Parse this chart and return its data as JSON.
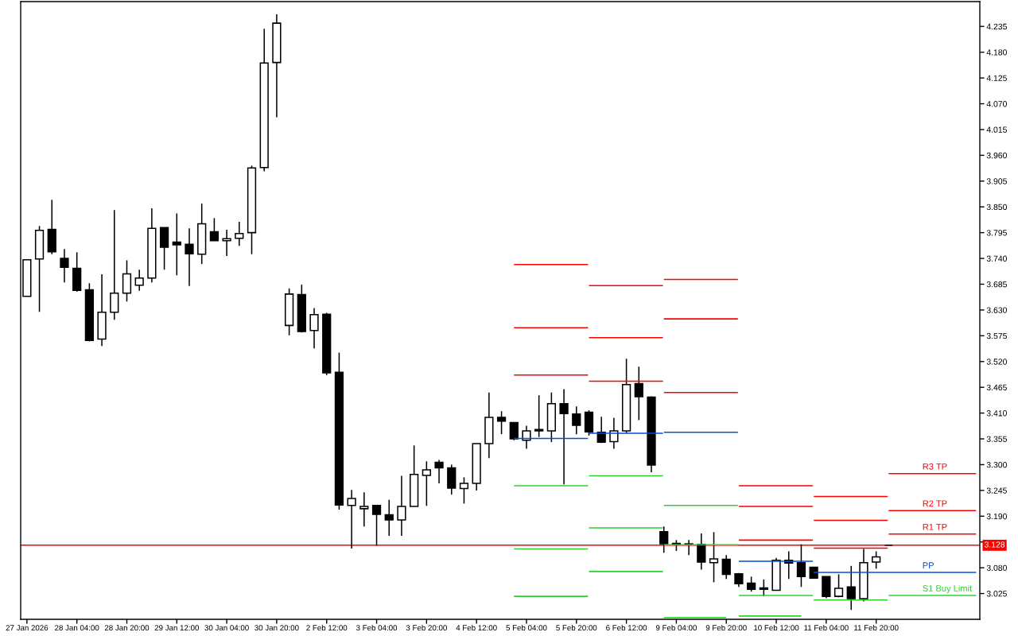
{
  "chart_data": {
    "type": "candlestick",
    "categories": [
      "27 Jan 2026",
      null,
      null,
      null,
      "28 Jan 04:00",
      null,
      null,
      null,
      "28 Jan 20:00",
      null,
      null,
      null,
      "29 Jan 12:00",
      null,
      null,
      null,
      "30 Jan 04:00",
      null,
      null,
      null,
      "30 Jan 20:00",
      null,
      null,
      null,
      "2 Feb 12:00",
      null,
      null,
      null,
      "3 Feb 04:00",
      null,
      null,
      null,
      "3 Feb 20:00",
      null,
      null,
      null,
      "4 Feb 12:00",
      null,
      null,
      null,
      "5 Feb 04:00",
      null,
      null,
      null,
      "5 Feb 20:00",
      null,
      null,
      null,
      "6 Feb 12:00",
      null,
      null,
      null,
      "9 Feb 04:00",
      null,
      null,
      null,
      "9 Feb 20:00",
      null,
      null,
      null,
      "10 Feb 12:00",
      null,
      null,
      null,
      "11 Feb 04:00",
      null,
      null,
      null,
      "11 Feb 20:00",
      null,
      null,
      null,
      null,
      null,
      null,
      null,
      null
    ],
    "ohlc": [
      [
        3.659,
        3.737,
        3.659,
        3.737
      ],
      [
        3.739,
        3.809,
        3.626,
        3.8
      ],
      [
        3.802,
        3.865,
        3.749,
        3.754
      ],
      [
        3.74,
        3.76,
        3.689,
        3.721
      ],
      [
        3.719,
        3.753,
        3.669,
        3.672
      ],
      [
        3.673,
        3.687,
        3.563,
        3.565
      ],
      [
        3.568,
        3.706,
        3.553,
        3.625
      ],
      [
        3.625,
        3.843,
        3.609,
        3.666
      ],
      [
        3.666,
        3.736,
        3.648,
        3.707
      ],
      [
        3.683,
        3.716,
        3.671,
        3.698
      ],
      [
        3.698,
        3.847,
        3.689,
        3.804
      ],
      [
        3.806,
        3.806,
        3.716,
        3.764
      ],
      [
        3.775,
        3.836,
        3.704,
        3.769
      ],
      [
        3.77,
        3.804,
        3.681,
        3.75
      ],
      [
        3.749,
        3.857,
        3.728,
        3.814
      ],
      [
        3.797,
        3.826,
        3.778,
        3.778
      ],
      [
        3.778,
        3.801,
        3.745,
        3.782
      ],
      [
        3.783,
        3.818,
        3.767,
        3.793
      ],
      [
        3.795,
        3.938,
        3.749,
        3.933
      ],
      [
        3.934,
        4.23,
        3.926,
        4.157
      ],
      [
        4.158,
        4.261,
        4.041,
        4.242
      ],
      [
        3.597,
        3.676,
        3.576,
        3.664
      ],
      [
        3.663,
        3.684,
        3.582,
        3.584
      ],
      [
        3.586,
        3.634,
        3.548,
        3.62
      ],
      [
        3.621,
        3.624,
        3.491,
        3.496
      ],
      [
        3.497,
        3.539,
        3.204,
        3.214
      ],
      [
        3.213,
        3.246,
        3.121,
        3.228
      ],
      [
        3.206,
        3.241,
        3.168,
        3.211
      ],
      [
        3.213,
        3.214,
        3.127,
        3.194
      ],
      [
        3.193,
        3.225,
        3.148,
        3.182
      ],
      [
        3.182,
        3.276,
        3.148,
        3.211
      ],
      [
        3.211,
        3.341,
        3.211,
        3.279
      ],
      [
        3.277,
        3.307,
        3.212,
        3.289
      ],
      [
        3.305,
        3.31,
        3.26,
        3.293
      ],
      [
        3.293,
        3.3,
        3.236,
        3.25
      ],
      [
        3.249,
        3.273,
        3.217,
        3.26
      ],
      [
        3.26,
        3.345,
        3.245,
        3.345
      ],
      [
        3.345,
        3.454,
        3.314,
        3.401
      ],
      [
        3.401,
        3.414,
        3.365,
        3.393
      ],
      [
        3.39,
        3.39,
        3.352,
        3.355
      ],
      [
        3.352,
        3.383,
        3.334,
        3.372
      ],
      [
        3.375,
        3.448,
        3.359,
        3.372
      ],
      [
        3.372,
        3.454,
        3.348,
        3.43
      ],
      [
        3.43,
        3.461,
        3.258,
        3.409
      ],
      [
        3.408,
        3.424,
        3.365,
        3.384
      ],
      [
        3.412,
        3.416,
        3.362,
        3.37
      ],
      [
        3.369,
        3.402,
        3.346,
        3.348
      ],
      [
        3.349,
        3.4,
        3.334,
        3.372
      ],
      [
        3.372,
        3.526,
        3.367,
        3.471
      ],
      [
        3.473,
        3.509,
        3.395,
        3.445
      ],
      [
        3.444,
        3.446,
        3.284,
        3.299
      ],
      [
        3.157,
        3.168,
        3.112,
        3.131
      ],
      [
        3.132,
        3.139,
        3.116,
        3.129
      ],
      [
        3.131,
        3.139,
        3.107,
        3.129
      ],
      [
        3.13,
        3.153,
        3.076,
        3.092
      ],
      [
        3.091,
        3.156,
        3.049,
        3.099
      ],
      [
        3.098,
        3.107,
        3.056,
        3.066
      ],
      [
        3.067,
        3.069,
        3.039,
        3.046
      ],
      [
        3.047,
        3.061,
        3.029,
        3.034
      ],
      [
        3.037,
        3.055,
        3.019,
        3.034
      ],
      [
        3.032,
        3.101,
        3.032,
        3.096
      ],
      [
        3.096,
        3.115,
        3.056,
        3.09
      ],
      [
        3.091,
        3.13,
        3.039,
        3.061
      ],
      [
        3.081,
        3.081,
        3.058,
        3.058
      ],
      [
        3.061,
        3.061,
        3.015,
        3.019
      ],
      [
        3.019,
        3.066,
        3.017,
        3.036
      ],
      [
        3.039,
        3.084,
        2.99,
        3.014
      ],
      [
        3.014,
        3.12,
        3.008,
        3.091
      ],
      [
        3.092,
        3.115,
        3.078,
        3.103
      ],
      [
        3.128,
        3.128,
        3.128,
        3.128
      ],
      null,
      null,
      null,
      null,
      null,
      null,
      null
    ],
    "series": [
      {
        "type": "step",
        "name": "R3 TP",
        "color": "#ff0000",
        "values": [
          null,
          null,
          null,
          null,
          null,
          null,
          null,
          null,
          null,
          null,
          null,
          null,
          null,
          null,
          null,
          null,
          null,
          null,
          null,
          null,
          null,
          null,
          null,
          null,
          null,
          null,
          null,
          null,
          null,
          null,
          null,
          null,
          null,
          null,
          null,
          null,
          null,
          null,
          null,
          3.727,
          3.727,
          3.727,
          3.727,
          3.727,
          3.727,
          3.682,
          3.682,
          3.682,
          3.682,
          3.682,
          3.682,
          3.695,
          3.695,
          3.695,
          3.695,
          3.695,
          3.695,
          3.255,
          3.255,
          3.255,
          3.255,
          3.255,
          3.255,
          3.232,
          3.232,
          3.232,
          3.232,
          3.232,
          3.232,
          3.281,
          3.281,
          3.281,
          3.281,
          3.281,
          3.281,
          3.281,
          3.281
        ]
      },
      {
        "type": "step",
        "name": "R2 TP",
        "color": "#ff0000",
        "values": [
          null,
          null,
          null,
          null,
          null,
          null,
          null,
          null,
          null,
          null,
          null,
          null,
          null,
          null,
          null,
          null,
          null,
          null,
          null,
          null,
          null,
          null,
          null,
          null,
          null,
          null,
          null,
          null,
          null,
          null,
          null,
          null,
          null,
          null,
          null,
          null,
          null,
          null,
          null,
          3.592,
          3.592,
          3.592,
          3.592,
          3.592,
          3.592,
          3.571,
          3.571,
          3.571,
          3.571,
          3.571,
          3.571,
          3.611,
          3.611,
          3.611,
          3.611,
          3.611,
          3.611,
          3.211,
          3.211,
          3.211,
          3.211,
          3.211,
          3.211,
          3.181,
          3.181,
          3.181,
          3.181,
          3.181,
          3.181,
          3.202,
          3.202,
          3.202,
          3.202,
          3.202,
          3.202,
          3.202,
          3.202
        ]
      },
      {
        "type": "step",
        "name": "R1 TP",
        "color": "#ff0000",
        "values": [
          null,
          null,
          null,
          null,
          null,
          null,
          null,
          null,
          null,
          null,
          null,
          null,
          null,
          null,
          null,
          null,
          null,
          null,
          null,
          null,
          null,
          null,
          null,
          null,
          null,
          null,
          null,
          null,
          null,
          null,
          null,
          null,
          null,
          null,
          null,
          null,
          null,
          null,
          null,
          3.491,
          3.491,
          3.491,
          3.491,
          3.491,
          3.491,
          3.478,
          3.478,
          3.478,
          3.478,
          3.478,
          3.478,
          3.454,
          3.454,
          3.454,
          3.454,
          3.454,
          3.454,
          3.139,
          3.139,
          3.139,
          3.139,
          3.139,
          3.139,
          3.122,
          3.122,
          3.122,
          3.122,
          3.122,
          3.122,
          3.152,
          3.152,
          3.152,
          3.152,
          3.152,
          3.152,
          3.152,
          3.152
        ]
      },
      {
        "type": "step",
        "name": "PP",
        "color": "#0050dc",
        "values": [
          null,
          null,
          null,
          null,
          null,
          null,
          null,
          null,
          null,
          null,
          null,
          null,
          null,
          null,
          null,
          null,
          null,
          null,
          null,
          null,
          null,
          null,
          null,
          null,
          null,
          null,
          null,
          null,
          null,
          null,
          null,
          null,
          null,
          null,
          null,
          null,
          null,
          null,
          null,
          3.356,
          3.356,
          3.356,
          3.356,
          3.356,
          3.356,
          3.367,
          3.367,
          3.367,
          3.367,
          3.367,
          3.367,
          3.369,
          3.369,
          3.369,
          3.369,
          3.369,
          3.369,
          3.094,
          3.094,
          3.094,
          3.094,
          3.094,
          3.094,
          3.07,
          3.07,
          3.07,
          3.07,
          3.07,
          3.07,
          3.07,
          3.07,
          3.07,
          3.07,
          3.07,
          3.07,
          3.07,
          3.07
        ]
      },
      {
        "type": "step",
        "name": "S1 Buy Limit",
        "color": "#32cd32",
        "values": [
          null,
          null,
          null,
          null,
          null,
          null,
          null,
          null,
          null,
          null,
          null,
          null,
          null,
          null,
          null,
          null,
          null,
          null,
          null,
          null,
          null,
          null,
          null,
          null,
          null,
          null,
          null,
          null,
          null,
          null,
          null,
          null,
          null,
          null,
          null,
          null,
          null,
          null,
          null,
          3.255,
          3.255,
          3.255,
          3.255,
          3.255,
          3.255,
          3.276,
          3.276,
          3.276,
          3.276,
          3.276,
          3.276,
          3.213,
          3.213,
          3.213,
          3.213,
          3.213,
          3.213,
          3.021,
          3.021,
          3.021,
          3.021,
          3.021,
          3.021,
          3.011,
          3.011,
          3.011,
          3.011,
          3.011,
          3.011,
          3.021,
          3.021,
          3.021,
          3.021,
          3.021,
          3.021,
          3.021,
          3.021
        ]
      },
      {
        "type": "step",
        "color": "#32cd32",
        "values": [
          null,
          null,
          null,
          null,
          null,
          null,
          null,
          null,
          null,
          null,
          null,
          null,
          null,
          null,
          null,
          null,
          null,
          null,
          null,
          null,
          null,
          null,
          null,
          null,
          null,
          null,
          null,
          null,
          null,
          null,
          null,
          null,
          null,
          null,
          null,
          null,
          null,
          null,
          null,
          3.12,
          3.12,
          3.12,
          3.12,
          3.12,
          3.12,
          3.165,
          3.165,
          3.165,
          3.165,
          3.165,
          3.165,
          3.129,
          3.129,
          3.129,
          3.129,
          3.129,
          3.129,
          2.977,
          2.977,
          2.977,
          2.977,
          2.977,
          2.977,
          null,
          null,
          null,
          null,
          null,
          null,
          null,
          null,
          null,
          null,
          null,
          null,
          null,
          null
        ]
      },
      {
        "type": "step",
        "color": "#32cd32",
        "values": [
          null,
          null,
          null,
          null,
          null,
          null,
          null,
          null,
          null,
          null,
          null,
          null,
          null,
          null,
          null,
          null,
          null,
          null,
          null,
          null,
          null,
          null,
          null,
          null,
          null,
          null,
          null,
          null,
          null,
          null,
          null,
          null,
          null,
          null,
          null,
          null,
          null,
          null,
          null,
          3.019,
          3.019,
          3.019,
          3.019,
          3.019,
          3.019,
          3.072,
          3.072,
          3.072,
          3.072,
          3.072,
          3.072,
          2.974,
          2.974,
          2.974,
          2.974,
          2.974,
          2.974,
          null,
          null,
          null,
          null,
          null,
          null,
          null,
          null,
          null,
          null,
          null,
          null,
          null,
          null,
          null,
          null,
          null,
          null,
          null,
          null
        ]
      }
    ],
    "ref_lines": [
      {
        "axis": "y",
        "value": 3.128,
        "label": "3.128",
        "color": "#ff0000"
      }
    ],
    "ylim": [
      2.97,
      4.288
    ],
    "yticks": [
      3.025,
      {
        "value": 3.08,
        "label": "3.080"
      },
      {
        "value": 3.135,
        "label": null
      },
      {
        "value": 3.19,
        "label": "3.190"
      },
      3.245,
      {
        "value": 3.3,
        "label": "3.300"
      },
      3.355,
      {
        "value": 3.41,
        "label": "3.410"
      },
      3.465,
      {
        "value": 3.52,
        "label": "3.520"
      },
      3.575,
      {
        "value": 3.63,
        "label": "3.630"
      },
      3.685,
      {
        "value": 3.74,
        "label": "3.740"
      },
      3.795,
      {
        "value": 3.85,
        "label": "3.850"
      },
      3.905,
      {
        "value": 3.96,
        "label": "3.960"
      },
      4.015,
      {
        "value": 4.07,
        "label": "4.070"
      },
      4.125,
      {
        "value": 4.18,
        "label": "4.180"
      },
      4.235
    ]
  }
}
